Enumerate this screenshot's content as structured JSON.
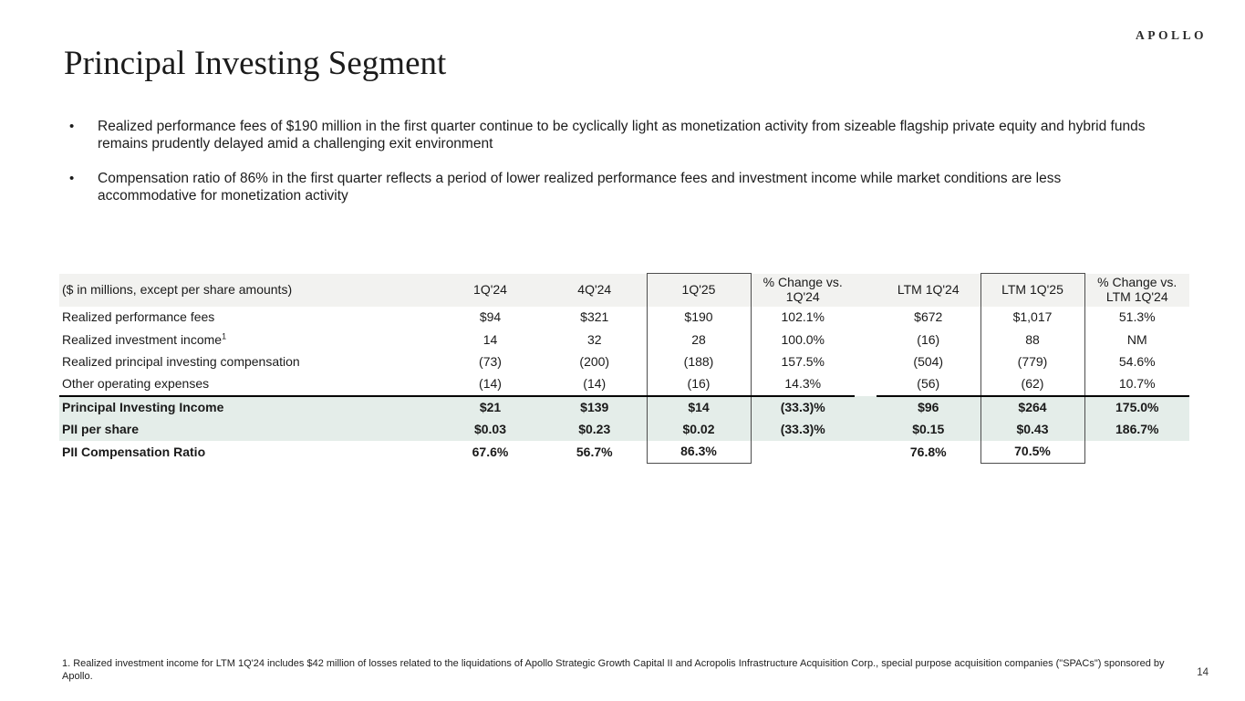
{
  "logo": "APOLLO",
  "title": "Principal Investing Segment",
  "bullet_glyph": "•",
  "bullets": [
    "Realized performance fees of $190 million in the first quarter continue to be cyclically light as monetization activity from sizeable flagship private equity and hybrid funds remains prudently delayed amid a challenging exit environment",
    "Compensation ratio of 86% in the first quarter reflects a period of lower realized performance fees and investment income while market conditions are less accommodative for monetization activity"
  ],
  "table": {
    "unit_label": "($ in millions, except per share amounts)",
    "col_headers": [
      "1Q'24",
      "4Q'24",
      "1Q'25",
      "% Change vs. 1Q'24",
      "LTM 1Q'24",
      "LTM 1Q'25",
      "% Change vs. LTM 1Q'24"
    ],
    "boxed_columns": [
      "1Q'25",
      "LTM 1Q'25"
    ],
    "rows": [
      {
        "label": "Realized performance fees",
        "sup": "",
        "bold": false,
        "highlight": false,
        "values": [
          "$94",
          "$321",
          "$190",
          "102.1%",
          "$672",
          "$1,017",
          "51.3%"
        ]
      },
      {
        "label": "Realized investment income",
        "sup": "1",
        "bold": false,
        "highlight": false,
        "values": [
          "14",
          "32",
          "28",
          "100.0%",
          "(16)",
          "88",
          "NM"
        ]
      },
      {
        "label": "Realized principal investing compensation",
        "sup": "",
        "bold": false,
        "highlight": false,
        "values": [
          "(73)",
          "(200)",
          "(188)",
          "157.5%",
          "(504)",
          "(779)",
          "54.6%"
        ]
      },
      {
        "label": "Other operating expenses",
        "sup": "",
        "bold": false,
        "highlight": false,
        "values": [
          "(14)",
          "(14)",
          "(16)",
          "14.3%",
          "(56)",
          "(62)",
          "10.7%"
        ]
      },
      {
        "label": "Principal Investing Income",
        "sup": "",
        "bold": true,
        "highlight": true,
        "values": [
          "$21",
          "$139",
          "$14",
          "(33.3)%",
          "$96",
          "$264",
          "175.0%"
        ]
      },
      {
        "label": "PII per share",
        "sup": "",
        "bold": true,
        "highlight": true,
        "values": [
          "$0.03",
          "$0.23",
          "$0.02",
          "(33.3)%",
          "$0.15",
          "$0.43",
          "186.7%"
        ]
      },
      {
        "label": "PII Compensation Ratio",
        "sup": "",
        "bold": true,
        "highlight": false,
        "values": [
          "67.6%",
          "56.7%",
          "86.3%",
          "",
          "76.8%",
          "70.5%",
          ""
        ]
      }
    ]
  },
  "footnote": "1. Realized investment income for LTM 1Q'24 includes $42 million of losses related to the liquidations of Apollo Strategic Growth Capital II and Acropolis Infrastructure Acquisition Corp., special purpose acquisition companies (\"SPACs\") sponsored by Apollo.",
  "page_number": "14",
  "colors": {
    "header_bg": "#f2f2f0",
    "highlight_bg": "#e4ede9",
    "box_border": "#4d4d4d",
    "separator": "#000000"
  }
}
